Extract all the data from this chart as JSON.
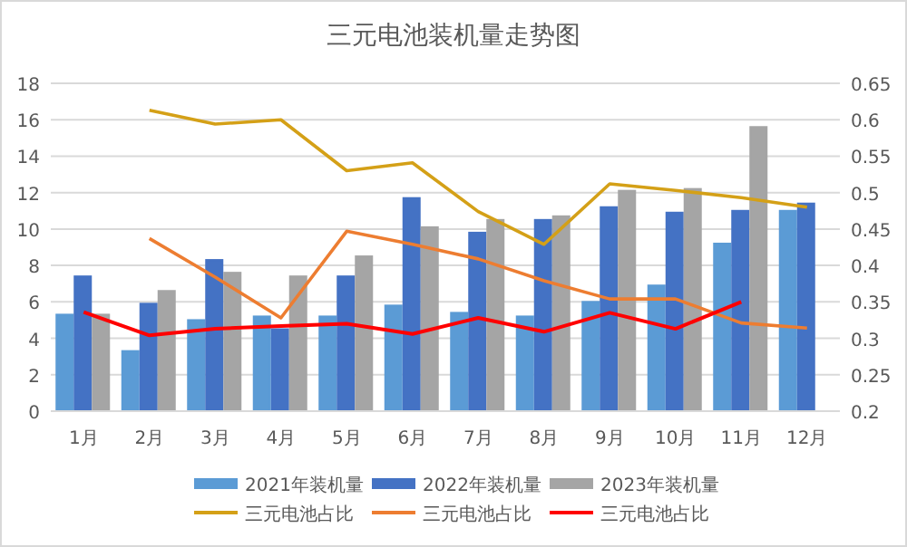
{
  "chart_data": {
    "type": "bar",
    "title": "三元电池装机量走势图",
    "categories": [
      "1月",
      "2月",
      "3月",
      "4月",
      "5月",
      "6月",
      "7月",
      "8月",
      "9月",
      "10月",
      "11月",
      "12月"
    ],
    "ylim": [
      0,
      18
    ],
    "yticks": [
      0,
      2,
      4,
      6,
      8,
      10,
      12,
      14,
      16,
      18
    ],
    "y2lim": [
      0.2,
      0.65
    ],
    "y2ticks": [
      0.2,
      0.25,
      0.3,
      0.35,
      0.4,
      0.45,
      0.5,
      0.55,
      0.6,
      0.65
    ],
    "grid": "y",
    "legend": "bottom",
    "series": [
      {
        "name": "2021年装机量",
        "color": "#5b9bd5",
        "values": [
          5.3,
          3.3,
          5.0,
          5.2,
          5.2,
          5.8,
          5.4,
          5.2,
          6.0,
          6.9,
          9.2,
          11.0
        ]
      },
      {
        "name": "2022年装机量",
        "color": "#4472c4",
        "values": [
          7.4,
          5.9,
          8.3,
          4.5,
          7.4,
          11.7,
          9.8,
          10.5,
          11.2,
          10.9,
          11.0,
          11.4
        ]
      },
      {
        "name": "2023年装机量",
        "color": "#a5a5a5",
        "values": [
          5.3,
          6.6,
          7.6,
          7.4,
          8.5,
          10.1,
          10.5,
          10.7,
          12.1,
          12.2,
          15.6,
          null
        ]
      },
      {
        "name": "三元电池占比",
        "type": "line",
        "axis": "y2",
        "color": "#d4a017",
        "values": [
          null,
          0.613,
          0.594,
          0.6,
          0.53,
          0.541,
          0.474,
          0.429,
          0.512,
          0.503,
          0.493,
          0.48
        ]
      },
      {
        "name": "三元电池占比",
        "type": "line",
        "axis": "y2",
        "color": "#ed7d31",
        "values": [
          null,
          0.437,
          0.384,
          0.328,
          0.447,
          0.429,
          0.409,
          0.379,
          0.354,
          0.354,
          0.321,
          0.314
        ]
      },
      {
        "name": "三元电池占比",
        "type": "line",
        "axis": "y2",
        "color": "#ff0000",
        "values": [
          0.336,
          0.304,
          0.313,
          0.317,
          0.32,
          0.306,
          0.328,
          0.309,
          0.335,
          0.313,
          0.35,
          null
        ]
      }
    ]
  }
}
